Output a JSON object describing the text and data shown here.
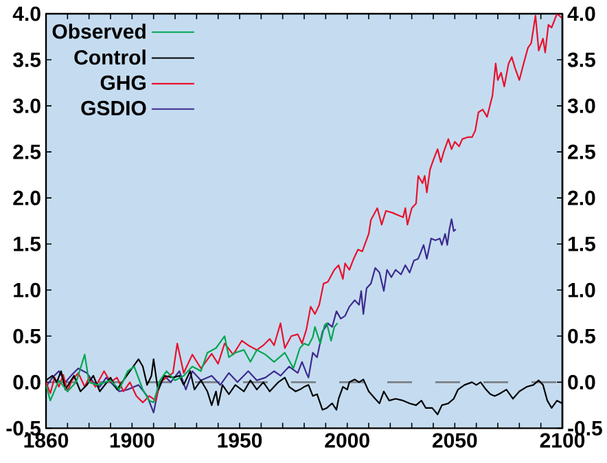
{
  "chart_data": {
    "type": "line",
    "xlim": [
      1860,
      2100
    ],
    "xticks": [
      1860,
      {
        "value": 1870,
        "label": null
      },
      {
        "value": 1880,
        "label": null
      },
      {
        "value": 1890,
        "label": null
      },
      1900,
      {
        "value": 1910,
        "label": null
      },
      {
        "value": 1920,
        "label": null
      },
      {
        "value": 1930,
        "label": null
      },
      {
        "value": 1940,
        "label": null
      },
      1950,
      {
        "value": 1960,
        "label": null
      },
      {
        "value": 1970,
        "label": null
      },
      {
        "value": 1980,
        "label": null
      },
      {
        "value": 1990,
        "label": null
      },
      2000,
      {
        "value": 2010,
        "label": null
      },
      {
        "value": 2020,
        "label": null
      },
      {
        "value": 2030,
        "label": null
      },
      {
        "value": 2040,
        "label": null
      },
      2050,
      {
        "value": 2060,
        "label": null
      },
      {
        "value": 2070,
        "label": null
      },
      {
        "value": 2080,
        "label": null
      },
      {
        "value": 2090,
        "label": null
      },
      2100
    ],
    "ylim": [
      -0.5,
      4.0
    ],
    "yticks": [
      -0.5,
      {
        "value": 0,
        "label": "0.0"
      },
      0.5,
      {
        "value": 1,
        "label": "1.0"
      },
      1.5,
      {
        "value": 2,
        "label": "2.0"
      },
      2.5,
      {
        "value": 3,
        "label": "3.0"
      },
      3.5,
      {
        "value": 4,
        "label": "4.0"
      }
    ],
    "y2lim": [
      -0.5,
      4.0
    ],
    "y2ticks": [
      -0.5,
      {
        "value": 0,
        "label": "0.0"
      },
      0.5,
      {
        "value": 1,
        "label": "1.0"
      },
      1.5,
      {
        "value": 2,
        "label": "2.0"
      },
      2.5,
      {
        "value": 3,
        "label": "3.0"
      },
      3.5,
      {
        "value": 4,
        "label": "4.0"
      }
    ],
    "legend": "top left",
    "ref_lines": [
      {
        "axis": "y",
        "value": 0,
        "color": "#7a7f86",
        "line_style": "dashed"
      }
    ],
    "series": [
      {
        "name": "Observed",
        "color": "#00a650",
        "x": [
          1860,
          1862,
          1866,
          1870,
          1874,
          1878,
          1880,
          1884,
          1890,
          1894,
          1898,
          1901,
          1905,
          1908,
          1910,
          1913,
          1916,
          1920,
          1924,
          1928,
          1932,
          1935,
          1939,
          1943,
          1945,
          1948,
          1952,
          1955,
          1958,
          1962,
          1966,
          1971,
          1975,
          1978,
          1980,
          1982,
          1984,
          1985,
          1987.5,
          1989.5,
          1990.5,
          1992.5,
          1994,
          1995.5
        ],
        "values": [
          -0.03,
          -0.2,
          0.02,
          -0.1,
          0.0,
          0.3,
          0.0,
          -0.03,
          0.02,
          -0.08,
          0.12,
          0.17,
          -0.08,
          -0.2,
          -0.22,
          0.02,
          0.12,
          0.02,
          0.07,
          0.17,
          0.12,
          0.32,
          0.37,
          0.5,
          0.27,
          0.32,
          0.35,
          0.22,
          0.35,
          0.3,
          0.22,
          0.32,
          0.15,
          0.37,
          0.42,
          0.4,
          0.49,
          0.6,
          0.42,
          0.62,
          0.64,
          0.45,
          0.6,
          0.64
        ]
      },
      {
        "name": "Control",
        "color": "#000000",
        "x": [
          1860,
          1863,
          1865,
          1867,
          1869,
          1873,
          1876,
          1879,
          1882,
          1885,
          1890,
          1893,
          1896,
          1899,
          1903,
          1905,
          1907,
          1909,
          1910,
          1912,
          1915,
          1919,
          1922,
          1924,
          1927,
          1929,
          1932,
          1935,
          1937,
          1939,
          1940,
          1942,
          1945,
          1948,
          1952,
          1955,
          1958,
          1961,
          1964,
          1968,
          1971,
          1973,
          1976,
          1978,
          1980,
          1982,
          1984,
          1986,
          1988.5,
          1990.5,
          1993,
          1995,
          1996,
          1998,
          2000,
          2001,
          2003.5,
          2005.5,
          2007.5,
          2010,
          2013,
          2015,
          2017,
          2019.5,
          2022.5,
          2026,
          2029,
          2032,
          2034.5,
          2036.5,
          2039.5,
          2042,
          2044,
          2047,
          2049.5,
          2051.5,
          2054.5,
          2058,
          2060,
          2062,
          2064.5,
          2066.5,
          2068.5,
          2070.5,
          2074,
          2077,
          2080,
          2083.5,
          2086.5,
          2089,
          2091,
          2093,
          2095,
          2097.5,
          2100
        ],
        "values": [
          0.02,
          0.07,
          0.0,
          0.12,
          -0.08,
          0.07,
          -0.1,
          -0.03,
          0.07,
          -0.1,
          0.05,
          -0.08,
          0.02,
          0.12,
          0.25,
          0.17,
          -0.03,
          0.07,
          0.25,
          -0.08,
          0.07,
          0.05,
          0.07,
          -0.03,
          0.12,
          -0.08,
          0.02,
          -0.1,
          -0.25,
          -0.1,
          -0.25,
          -0.03,
          -0.13,
          -0.03,
          -0.1,
          0.02,
          -0.08,
          0.0,
          -0.1,
          0.0,
          0.05,
          -0.05,
          -0.1,
          -0.08,
          -0.05,
          -0.03,
          -0.15,
          -0.13,
          -0.3,
          -0.28,
          -0.23,
          -0.3,
          -0.18,
          -0.05,
          -0.08,
          0.0,
          0.03,
          0.0,
          0.03,
          -0.1,
          -0.18,
          -0.23,
          -0.1,
          -0.2,
          -0.18,
          -0.2,
          -0.23,
          -0.25,
          -0.2,
          -0.28,
          -0.28,
          -0.35,
          -0.25,
          -0.23,
          -0.18,
          -0.08,
          -0.03,
          0.0,
          -0.03,
          0.0,
          -0.08,
          -0.13,
          -0.15,
          -0.13,
          -0.08,
          -0.18,
          -0.1,
          -0.05,
          -0.03,
          0.02,
          -0.03,
          -0.2,
          -0.28,
          -0.2,
          -0.23
        ]
      },
      {
        "name": "GHG",
        "color": "#e8112d",
        "x": [
          1860,
          1862,
          1864,
          1866,
          1868,
          1870,
          1872,
          1875,
          1878,
          1880,
          1883,
          1887,
          1890,
          1893,
          1896,
          1899,
          1902,
          1905,
          1908,
          1911,
          1913,
          1916,
          1919,
          1921,
          1924,
          1928,
          1932,
          1937,
          1940,
          1943,
          1947,
          1951,
          1954,
          1958,
          1961,
          1964,
          1966,
          1969,
          1971,
          1974,
          1977,
          1979,
          1981,
          1983,
          1985,
          1987,
          1989,
          1991,
          1994,
          1996,
          1998,
          1999,
          2001,
          2003,
          2005,
          2007,
          2010,
          2011,
          2014,
          2016,
          2018,
          2021,
          2024,
          2026,
          2027,
          2028,
          2030,
          2032,
          2033,
          2035,
          2036,
          2037,
          2038.5,
          2040,
          2042,
          2043.5,
          2045,
          2047,
          2048.5,
          2050,
          2052,
          2053.5,
          2056,
          2058,
          2059.5,
          2061,
          2063,
          2065,
          2067.5,
          2069,
          2070,
          2071.5,
          2073,
          2075,
          2076.5,
          2078,
          2080,
          2082,
          2084,
          2085.5,
          2087.5,
          2089,
          2091,
          2092,
          2093.5,
          2095,
          2097.5,
          2100
        ],
        "values": [
          0.0,
          -0.12,
          0.05,
          -0.05,
          0.08,
          -0.1,
          0.02,
          0.1,
          -0.05,
          0.05,
          -0.05,
          0.12,
          0.0,
          0.05,
          -0.1,
          0.0,
          -0.15,
          -0.22,
          -0.15,
          -0.2,
          0.0,
          0.05,
          0.1,
          0.42,
          0.1,
          0.3,
          0.15,
          0.31,
          0.2,
          0.42,
          0.3,
          0.45,
          0.4,
          0.35,
          0.4,
          0.47,
          0.4,
          0.64,
          0.37,
          0.5,
          0.52,
          0.42,
          0.57,
          0.82,
          0.74,
          0.84,
          1.07,
          1.09,
          1.22,
          1.27,
          1.12,
          1.29,
          1.22,
          1.34,
          1.44,
          1.42,
          1.61,
          1.76,
          1.89,
          1.71,
          1.86,
          1.84,
          1.81,
          1.79,
          1.89,
          1.71,
          1.89,
          1.94,
          2.24,
          2.16,
          2.24,
          2.06,
          2.31,
          2.41,
          2.53,
          2.39,
          2.51,
          2.64,
          2.53,
          2.61,
          2.56,
          2.64,
          2.66,
          2.66,
          2.73,
          2.93,
          2.96,
          2.88,
          3.11,
          3.46,
          3.28,
          3.36,
          3.21,
          3.46,
          3.53,
          3.41,
          3.28,
          3.46,
          3.63,
          3.68,
          3.98,
          3.6,
          3.73,
          3.58,
          3.88,
          3.85,
          4.0,
          3.95
        ]
      },
      {
        "name": "GSDIO",
        "color": "#3d2a8e",
        "x": [
          1860,
          1863,
          1866,
          1869,
          1872,
          1875,
          1879,
          1882,
          1885,
          1888,
          1890,
          1894,
          1898,
          1903,
          1907,
          1910,
          1912,
          1915,
          1918,
          1922,
          1925,
          1928,
          1932,
          1937,
          1941,
          1945,
          1949,
          1954,
          1958,
          1962,
          1966,
          1969,
          1973,
          1977,
          1979,
          1981,
          1982,
          1984,
          1986,
          1988.5,
          1991,
          1993,
          1995,
          1997,
          1999,
          2001,
          2003.5,
          2005.5,
          2006.5,
          2007.5,
          2009,
          2011,
          2013,
          2015,
          2017,
          2018.5,
          2020.5,
          2022.5,
          2025,
          2027,
          2029,
          2031,
          2033,
          2035.5,
          2037,
          2039,
          2041,
          2043,
          2044,
          2045.5,
          2046.5,
          2047.5,
          2048.5,
          2049.5,
          2050.5
        ],
        "values": [
          -0.05,
          0.05,
          0.12,
          0.0,
          0.08,
          0.15,
          0.1,
          0.0,
          -0.05,
          0.05,
          0.0,
          -0.1,
          -0.08,
          -0.03,
          -0.15,
          -0.33,
          -0.1,
          0.07,
          0.0,
          0.12,
          -0.08,
          0.12,
          0.02,
          0.07,
          -0.03,
          0.1,
          0.0,
          0.12,
          0.02,
          0.05,
          0.12,
          0.07,
          0.17,
          0.1,
          0.22,
          0.1,
          0.05,
          0.32,
          0.27,
          0.55,
          0.64,
          0.6,
          0.77,
          0.69,
          0.72,
          0.82,
          0.89,
          0.84,
          0.99,
          0.74,
          1.02,
          1.07,
          1.24,
          1.19,
          0.99,
          1.22,
          1.14,
          1.22,
          1.17,
          1.27,
          1.19,
          1.32,
          1.34,
          1.49,
          1.34,
          1.56,
          1.54,
          1.56,
          1.49,
          1.61,
          1.49,
          1.66,
          1.77,
          1.64,
          1.66
        ]
      }
    ]
  }
}
